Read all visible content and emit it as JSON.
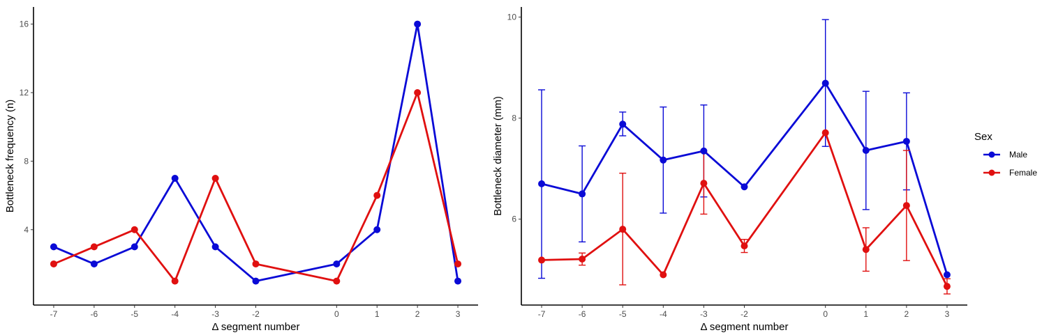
{
  "chart_data": [
    {
      "type": "line",
      "title": "",
      "xlabel": "Δ segment number",
      "ylabel": "Bottleneck frequency (n)",
      "xlim": [
        -7.5,
        3.5
      ],
      "ylim": [
        -0.4,
        17
      ],
      "x": [
        -7,
        -6,
        -5,
        -4,
        -3,
        -2,
        0,
        1,
        2,
        3
      ],
      "x_tick_labels": [
        "-7",
        "-6",
        "-5",
        "-4",
        "-3",
        "-2",
        "0",
        "1",
        "2",
        "3"
      ],
      "y_ticks": [
        4,
        8,
        12,
        16
      ],
      "y_tick_labels": [
        "4",
        "8",
        "12",
        "16"
      ],
      "series": [
        {
          "name": "Male",
          "color": "#0a0ad6",
          "values": [
            3,
            2,
            3,
            7,
            3,
            1,
            2,
            4,
            16,
            1
          ]
        },
        {
          "name": "Female",
          "color": "#e01010",
          "values": [
            2,
            3,
            4,
            1,
            7,
            2,
            1,
            6,
            12,
            2
          ]
        }
      ]
    },
    {
      "type": "line",
      "title": "",
      "xlabel": "Δ segment number",
      "ylabel": "Bottleneck diameter (mm)",
      "xlim": [
        -7.5,
        3.5
      ],
      "ylim": [
        4.3,
        10.2
      ],
      "x": [
        -7,
        -6,
        -5,
        -4,
        -3,
        -2,
        0,
        1,
        2,
        3
      ],
      "x_tick_labels": [
        "-7",
        "-6",
        "-5",
        "-4",
        "-3",
        "-2",
        "0",
        "1",
        "2",
        "3"
      ],
      "y_ticks": [
        6,
        8,
        10
      ],
      "y_tick_labels": [
        "6",
        "8",
        "10"
      ],
      "series": [
        {
          "name": "Male",
          "color": "#0a0ad6",
          "values": [
            6.7,
            6.5,
            7.88,
            7.17,
            7.35,
            6.64,
            8.69,
            7.36,
            7.54,
            4.9
          ],
          "err_low": [
            4.83,
            5.55,
            7.65,
            6.12,
            6.44,
            null,
            7.44,
            6.19,
            6.58,
            null
          ],
          "err_high": [
            8.56,
            7.45,
            8.12,
            8.22,
            8.26,
            null,
            9.95,
            8.53,
            8.5,
            null
          ]
        },
        {
          "name": "Female",
          "color": "#e01010",
          "values": [
            5.19,
            5.21,
            5.8,
            4.9,
            6.71,
            5.47,
            7.71,
            5.4,
            6.27,
            4.67
          ],
          "err_low": [
            null,
            5.09,
            4.7,
            null,
            6.1,
            5.34,
            null,
            4.97,
            5.18,
            4.52
          ],
          "err_high": [
            null,
            5.33,
            6.91,
            null,
            7.32,
            5.6,
            null,
            5.83,
            7.36,
            4.82
          ]
        }
      ]
    }
  ],
  "legend": {
    "title": "Sex",
    "items": [
      {
        "label": "Male",
        "color": "#0a0ad6"
      },
      {
        "label": "Female",
        "color": "#e01010"
      }
    ]
  }
}
